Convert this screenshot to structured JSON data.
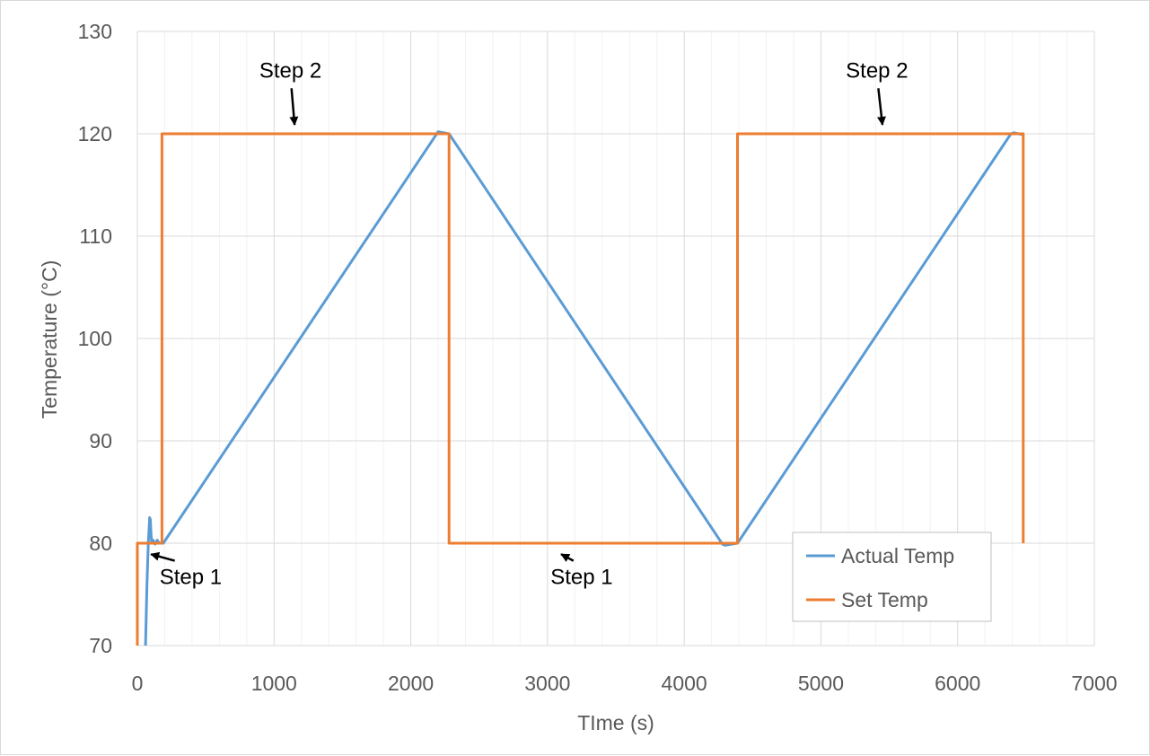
{
  "chart_data": {
    "type": "line",
    "xlabel": "TIme (s)",
    "ylabel": "Temperature (°C)",
    "xlim": [
      0,
      7000
    ],
    "ylim": [
      70,
      130
    ],
    "x_ticks": [
      "0",
      "1000",
      "2000",
      "3000",
      "4000",
      "5000",
      "6000",
      "7000"
    ],
    "y_ticks": [
      "70",
      "80",
      "90",
      "100",
      "110",
      "120",
      "130"
    ],
    "grid": true,
    "minor_x_grid_step": 200,
    "legend_position": "bottom-right",
    "series": [
      {
        "name": "Actual Temp",
        "color": "#5b9bd5",
        "x": [
          60,
          70,
          80,
          90,
          95,
          100,
          105,
          115,
          130,
          145,
          160,
          175,
          190,
          2180,
          2200,
          2280,
          4280,
          4300,
          4390,
          6390,
          6410,
          6480
        ],
        "y": [
          70,
          76,
          80,
          82.5,
          82.3,
          81,
          80,
          80.3,
          79.9,
          80.3,
          80,
          80,
          80,
          119.8,
          120.2,
          120,
          79.9,
          79.8,
          80,
          120,
          120.1,
          119.9
        ]
      },
      {
        "name": "Set Temp",
        "color": "#ed7d31",
        "x": [
          0,
          0,
          180,
          180,
          2280,
          2280,
          4390,
          4390,
          6480,
          6480
        ],
        "y": [
          70,
          80,
          80,
          120,
          120,
          80,
          80,
          120,
          120,
          80
        ]
      }
    ],
    "annotations": [
      {
        "text": "Step 2",
        "text_x": 1120,
        "text_y": 125.5,
        "point_x": 1150,
        "point_y": 120
      },
      {
        "text": "Step 2",
        "text_x": 5410,
        "text_y": 125.5,
        "point_x": 5450,
        "point_y": 120
      },
      {
        "text": "Step 1",
        "text_x": 390,
        "text_y": 76,
        "point_x": 100,
        "point_y": 79.8
      },
      {
        "text": "Step 1",
        "text_x": 3250,
        "text_y": 76,
        "point_x": 3100,
        "point_y": 79.8
      }
    ]
  }
}
